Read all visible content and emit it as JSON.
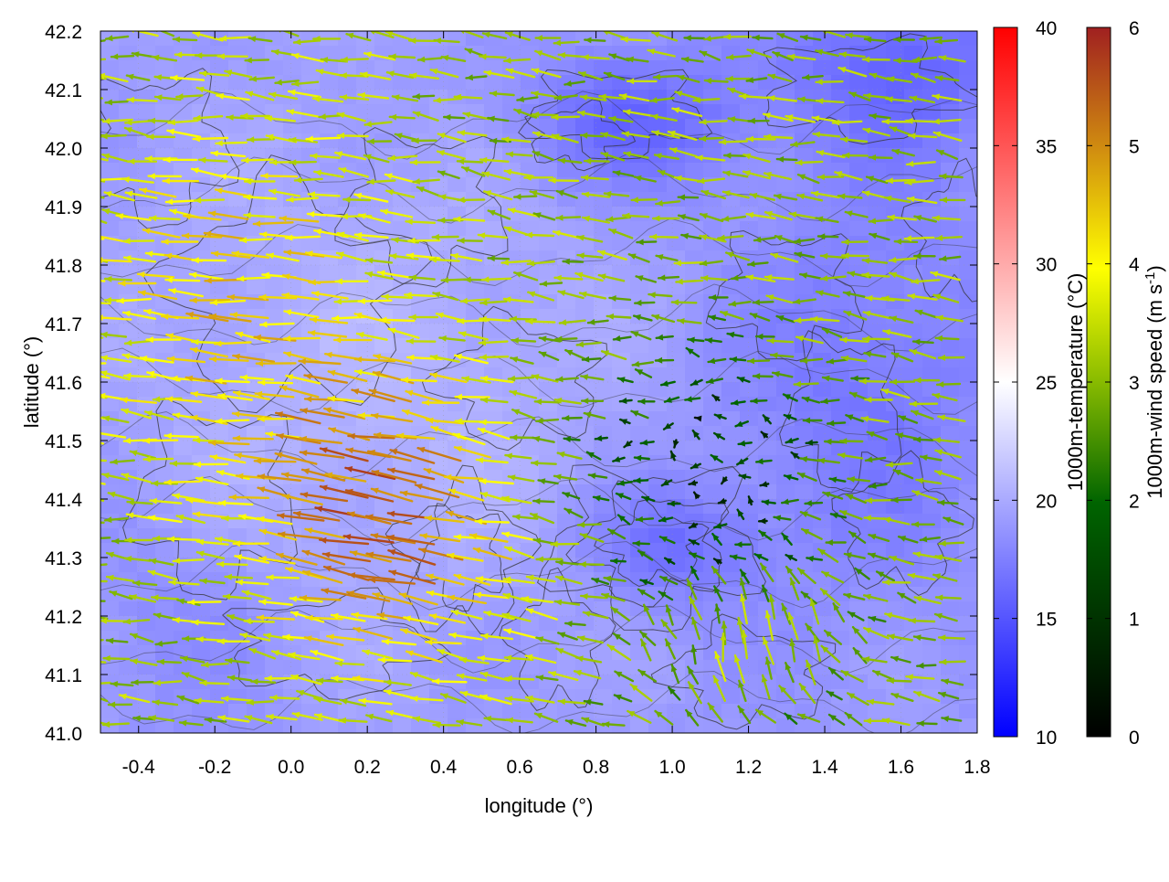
{
  "chart_data": {
    "type": "heatmap",
    "title": "",
    "xlabel": "longitude (°)",
    "ylabel": "latitude (°)",
    "xlim": [
      -0.5,
      1.8
    ],
    "ylim": [
      41.0,
      42.2
    ],
    "x_ticks": [
      "-0.4",
      "-0.2",
      "0.0",
      "0.2",
      "0.4",
      "0.6",
      "0.8",
      "1.0",
      "1.2",
      "1.4",
      "1.6",
      "1.8"
    ],
    "y_ticks": [
      "41.0",
      "41.1",
      "41.2",
      "41.3",
      "41.4",
      "41.5",
      "41.6",
      "41.7",
      "41.8",
      "41.9",
      "42.0",
      "42.1",
      "42.2"
    ],
    "grid": true,
    "field": {
      "name": "1000m-temperature",
      "unit": "°C",
      "range": [
        10,
        40
      ],
      "typical_range": [
        12,
        22
      ],
      "colormap": [
        "#0000ff",
        "#ffffff",
        "#ff0000"
      ]
    },
    "vectors": {
      "name": "1000m-wind speed",
      "range": [
        0,
        6
      ],
      "colormap": [
        "#000000",
        "#006400",
        "#88bb00",
        "#ffff00",
        "#d08c10",
        "#a02020"
      ]
    },
    "contours": {
      "color": "#333333"
    },
    "colorbars": [
      {
        "label": "1000m-temperature (°C)",
        "ticks": [
          "10",
          "15",
          "20",
          "25",
          "30",
          "35",
          "40"
        ]
      },
      {
        "label_main": "1000m-wind speed (m s",
        "label_sup": "-1",
        "label_end": ")",
        "ticks": [
          "0",
          "1",
          "2",
          "3",
          "4",
          "5",
          "6"
        ]
      }
    ]
  }
}
